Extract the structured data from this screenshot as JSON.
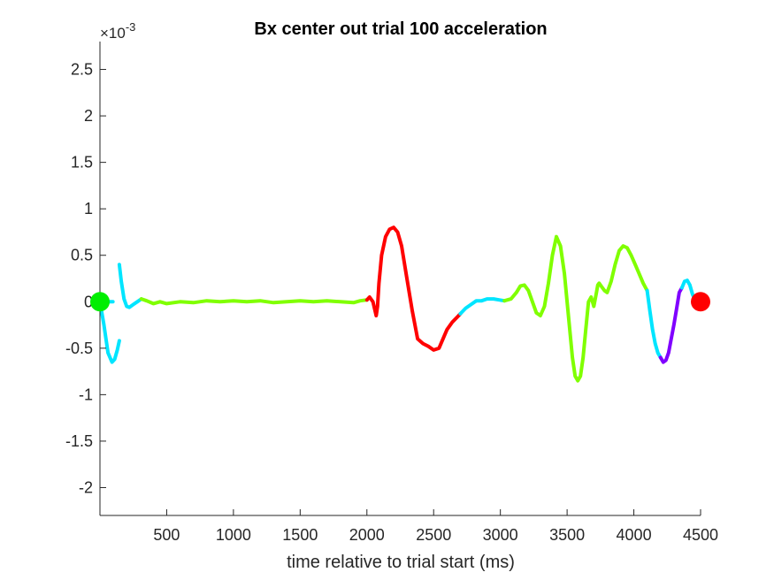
{
  "chart_data": {
    "type": "line",
    "title": "Bx  center out trial 100 acceleration",
    "xlabel": "time relative to trial start (ms)",
    "ylabel": "",
    "xlim": [
      0,
      4500
    ],
    "ylim": [
      -0.0023,
      0.0028
    ],
    "y_exponent_label": "×10",
    "y_exponent_power": "-3",
    "x_ticks": [
      500,
      1000,
      1500,
      2000,
      2500,
      3000,
      3500,
      4000,
      4500
    ],
    "x_tick_labels": [
      "500",
      "1000",
      "1500",
      "2000",
      "2500",
      "3000",
      "3500",
      "4000",
      "4500"
    ],
    "y_ticks": [
      -2,
      -1.5,
      -1,
      -0.5,
      0,
      0.5,
      1,
      1.5,
      2,
      2.5
    ],
    "y_tick_labels": [
      "-2",
      "-1.5",
      "-1",
      "-0.5",
      "0",
      "0.5",
      "1",
      "1.5",
      "2",
      "2.5"
    ],
    "y_tick_scale": 0.001,
    "grid": false,
    "segments": [
      {
        "color": "#00e5ff",
        "x": [
          0,
          30,
          60,
          90,
          110,
          130,
          145
        ],
        "y": [
          0.0,
          -0.00025,
          -0.00055,
          -0.00065,
          -0.00062,
          -0.00052,
          -0.00042
        ]
      },
      {
        "color": "#00e5ff",
        "x": [
          145,
          160,
          180,
          200,
          220,
          250,
          280,
          310
        ],
        "y": [
          0.0004,
          0.00022,
          3e-05,
          -5e-05,
          -6e-05,
          -3e-05,
          0.0,
          3e-05
        ]
      },
      {
        "color": "#80ff00",
        "x": [
          310,
          350,
          400,
          450,
          500,
          600,
          700,
          800,
          900,
          1000,
          1100,
          1200,
          1300,
          1400,
          1500,
          1600,
          1700,
          1800,
          1900,
          1950,
          2000
        ],
        "y": [
          3e-05,
          1e-05,
          -2e-05,
          0.0,
          -2e-05,
          0.0,
          -1e-05,
          1e-05,
          0.0,
          1e-05,
          0.0,
          1e-05,
          -1e-05,
          0.0,
          1e-05,
          0.0,
          1e-05,
          0.0,
          -1e-05,
          1e-05,
          2e-05
        ]
      },
      {
        "color": "#ff0000",
        "x": [
          2000,
          2020,
          2045,
          2070,
          2080,
          2090,
          2110,
          2140,
          2170,
          2200,
          2230,
          2260,
          2300,
          2340,
          2380,
          2420,
          2460,
          2500,
          2540,
          2570,
          2600,
          2640,
          2680,
          2700
        ],
        "y": [
          2e-05,
          5e-05,
          0.0,
          -0.00015,
          -5e-05,
          0.0002,
          0.0005,
          0.0007,
          0.00078,
          0.0008,
          0.00075,
          0.0006,
          0.00025,
          -0.0001,
          -0.0004,
          -0.00045,
          -0.00048,
          -0.00052,
          -0.0005,
          -0.0004,
          -0.0003,
          -0.00022,
          -0.00016,
          -0.00013
        ]
      },
      {
        "color": "#00e5ff",
        "x": [
          2700,
          2740,
          2780,
          2820,
          2860,
          2900,
          2950,
          2990,
          3030
        ],
        "y": [
          -0.00013,
          -7e-05,
          -3e-05,
          1e-05,
          1e-05,
          3e-05,
          3e-05,
          2e-05,
          1e-05
        ]
      },
      {
        "color": "#80ff00",
        "x": [
          3030,
          3080,
          3120,
          3150,
          3180,
          3210,
          3240,
          3270,
          3300,
          3330,
          3360,
          3390,
          3420,
          3450,
          3480,
          3500,
          3520,
          3540,
          3560,
          3580,
          3600,
          3620,
          3640,
          3660,
          3680,
          3700,
          3720,
          3730,
          3740,
          3760,
          3780,
          3800,
          3830,
          3860,
          3890,
          3920,
          3950,
          3980,
          4010,
          4040,
          4070,
          4100
        ],
        "y": [
          1e-05,
          3e-05,
          0.0001,
          0.00017,
          0.00018,
          0.00012,
          0.0,
          -0.00012,
          -0.00015,
          -5e-05,
          0.0002,
          0.0005,
          0.0007,
          0.0006,
          0.0003,
          0.0,
          -0.0003,
          -0.0006,
          -0.0008,
          -0.00085,
          -0.0008,
          -0.0006,
          -0.0003,
          0.0,
          5e-05,
          -5e-05,
          0.0001,
          0.00018,
          0.0002,
          0.00016,
          0.00012,
          0.0001,
          0.00022,
          0.0004,
          0.00055,
          0.0006,
          0.00058,
          0.0005,
          0.0004,
          0.0003,
          0.0002,
          0.00012
        ]
      },
      {
        "color": "#00e5ff",
        "x": [
          4100,
          4120,
          4140,
          4160,
          4180,
          4200
        ],
        "y": [
          0.00012,
          -0.0001,
          -0.0003,
          -0.00045,
          -0.00055,
          -0.0006
        ]
      },
      {
        "color": "#8000ff",
        "x": [
          4200,
          4220,
          4240,
          4260,
          4280,
          4300,
          4320,
          4340,
          4360
        ],
        "y": [
          -0.0006,
          -0.00065,
          -0.00063,
          -0.00055,
          -0.0004,
          -0.00025,
          -8e-05,
          0.0001,
          0.00015
        ]
      },
      {
        "color": "#00e5ff",
        "x": [
          4360,
          4380,
          4400,
          4420,
          4440,
          4460
        ],
        "y": [
          0.00015,
          0.00022,
          0.00023,
          0.00018,
          8e-05,
          1e-05
        ]
      }
    ],
    "gap_marker": {
      "color": "#00e5ff",
      "x": 150,
      "y": 0.0
    },
    "start_marker": {
      "label": "start",
      "color": "#00ee00",
      "x": 0,
      "y": 0.0
    },
    "end_marker": {
      "label": "end",
      "color": "#ff0000",
      "x": 4500,
      "y": 0.0
    },
    "axis_color": "#262626"
  }
}
